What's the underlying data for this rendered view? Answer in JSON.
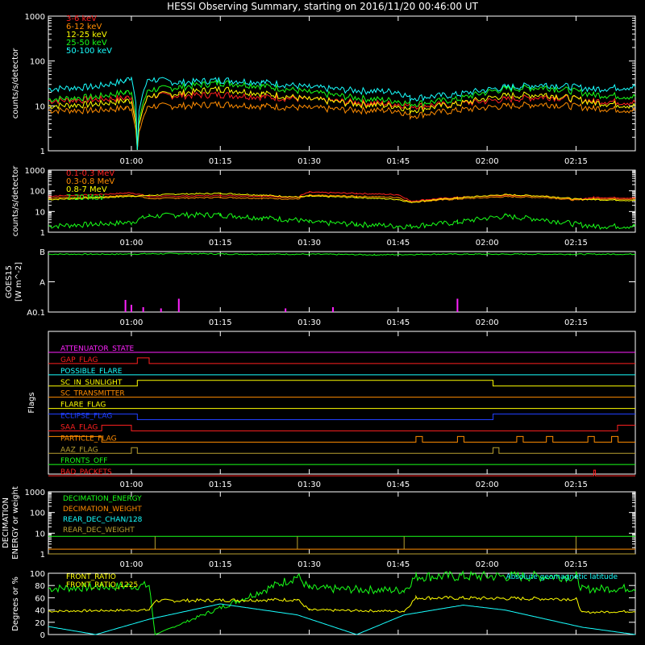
{
  "title": "HESSI Observing Summary, starting on 2016/11/20 00:46:00 UT",
  "time_ticks": [
    "01:00",
    "01:15",
    "01:30",
    "01:45",
    "02:00",
    "02:15"
  ],
  "colors": {
    "axis": "#ffffff",
    "red": "#ff2020",
    "orange": "#ff8c00",
    "yellow": "#ffff00",
    "green": "#18ff18",
    "cyan": "#18ffff",
    "magenta": "#ff22ff",
    "blue": "#2040ff",
    "olive": "#b8a030"
  },
  "chart_data": [
    {
      "id": "panel1",
      "type": "line",
      "ylabel": "counts/s/detector",
      "ylog": true,
      "ylim": [
        1,
        1000
      ],
      "yticks": [
        "1",
        "10",
        "100",
        "1000"
      ],
      "legend_position": "top-left",
      "x": [
        "00:46",
        "00:54",
        "00:59",
        "01:00",
        "01:01",
        "01:03",
        "01:08",
        "01:15",
        "01:22",
        "01:30",
        "01:38",
        "01:45",
        "01:47",
        "01:55",
        "02:03",
        "02:10",
        "02:18",
        "02:25"
      ],
      "series": [
        {
          "name": "3-6 keV",
          "color": "red",
          "values": [
            13,
            14,
            15,
            16,
            1,
            17,
            17,
            18,
            16,
            14,
            12,
            11,
            10,
            11,
            14,
            16,
            13,
            12
          ]
        },
        {
          "name": "6-12 keV",
          "color": "orange",
          "values": [
            8,
            8,
            9,
            9,
            1,
            10,
            10,
            11,
            10,
            9,
            8,
            8,
            6,
            8,
            10,
            11,
            9,
            8
          ]
        },
        {
          "name": "12-25 keV",
          "color": "yellow",
          "values": [
            10,
            11,
            13,
            13,
            1,
            17,
            19,
            24,
            19,
            14,
            11,
            10,
            8,
            11,
            17,
            18,
            12,
            10
          ]
        },
        {
          "name": "25-50 keV",
          "color": "green",
          "values": [
            14,
            16,
            20,
            21,
            1,
            23,
            26,
            33,
            28,
            20,
            15,
            13,
            11,
            14,
            24,
            26,
            18,
            16
          ]
        },
        {
          "name": "50-100 keV",
          "color": "cyan",
          "values": [
            24,
            27,
            36,
            45,
            1,
            40,
            33,
            38,
            34,
            26,
            22,
            21,
            15,
            18,
            26,
            30,
            24,
            27
          ]
        }
      ]
    },
    {
      "id": "panel2",
      "type": "line",
      "ylabel": "counts/s/detector",
      "ylog": true,
      "ylim": [
        1,
        1000
      ],
      "yticks": [
        "1",
        "10",
        "100",
        "1000"
      ],
      "legend_position": "top-left",
      "x": [
        "00:46",
        "00:54",
        "01:00",
        "01:03",
        "01:08",
        "01:15",
        "01:22",
        "01:28",
        "01:30",
        "01:38",
        "01:45",
        "01:47",
        "01:55",
        "02:03",
        "02:10",
        "02:15",
        "02:18",
        "02:25"
      ],
      "series": [
        {
          "name": "0.1-0.3 MeV",
          "color": "red",
          "values": [
            55,
            65,
            80,
            52,
            55,
            60,
            55,
            48,
            85,
            75,
            65,
            32,
            48,
            60,
            56,
            38,
            48,
            45
          ]
        },
        {
          "name": "0.3-0.8 MeV",
          "color": "orange",
          "values": [
            45,
            50,
            62,
            42,
            45,
            48,
            44,
            40,
            60,
            55,
            48,
            28,
            40,
            52,
            48,
            35,
            42,
            40
          ]
        },
        {
          "name": "0.8-7 MeV",
          "color": "yellow",
          "values": [
            38,
            45,
            55,
            60,
            70,
            75,
            62,
            50,
            55,
            48,
            38,
            28,
            45,
            65,
            55,
            40,
            38,
            34
          ]
        },
        {
          "name": "7-20 MeV",
          "color": "green",
          "values": [
            2,
            2.5,
            3,
            6,
            7,
            7,
            5,
            4,
            3,
            2.5,
            2,
            2,
            3,
            6,
            4,
            2.5,
            2,
            2
          ]
        }
      ]
    },
    {
      "id": "panel3",
      "type": "line",
      "ylabel": "GOES15",
      "ylabel2": "[W m^-2]",
      "yticks": [
        "A0.1",
        "A",
        "B"
      ],
      "series": [
        {
          "name": "GOES flux",
          "color": "green",
          "level": "B",
          "values": [
            0.92,
            0.92,
            0.93,
            0.92,
            0.92,
            0.91,
            0.92,
            0.92,
            0.92,
            0.92
          ]
        },
        {
          "name": "GOES spikes",
          "color": "magenta",
          "spikes": [
            [
              "00:59",
              0.2
            ],
            [
              "01:00",
              0.12
            ],
            [
              "01:02",
              0.08
            ],
            [
              "01:05",
              0.06
            ],
            [
              "01:08",
              0.22
            ],
            [
              "01:26",
              0.06
            ],
            [
              "01:34",
              0.08
            ],
            [
              "01:55",
              0.22
            ]
          ]
        }
      ]
    },
    {
      "id": "panel4",
      "type": "line",
      "ylabel": "Flags",
      "flags": [
        {
          "name": "ATTENUATOR_STATE",
          "color": "magenta"
        },
        {
          "name": "GAP_FLAG",
          "color": "red"
        },
        {
          "name": "POSSIBLE_FLARE",
          "color": "cyan"
        },
        {
          "name": "SC_IN_SUNLIGHT",
          "color": "yellow"
        },
        {
          "name": "SC_TRANSMITTER",
          "color": "orange"
        },
        {
          "name": "FLARE_FLAG",
          "color": "yellow"
        },
        {
          "name": "ECLIPSE_FLAG",
          "color": "blue"
        },
        {
          "name": "SAA_FLAG",
          "color": "red"
        },
        {
          "name": "PARTICLE_FLAG",
          "color": "orange"
        },
        {
          "name": "AAZ_FLAG",
          "color": "olive"
        },
        {
          "name": "FRONTS_OFF",
          "color": "green"
        },
        {
          "name": "BAD_PACKETS",
          "color": "red"
        }
      ]
    },
    {
      "id": "panel5",
      "type": "line",
      "ylabel": "DECIMATION",
      "ylabel2": "ENERGY or weight",
      "ylog": true,
      "ylim": [
        1,
        1000
      ],
      "yticks": [
        "1",
        "10",
        "100",
        "1000"
      ],
      "series": [
        {
          "name": "DECIMATION_ENERGY",
          "color": "green",
          "values": [
            7,
            7
          ]
        },
        {
          "name": "DECIMATION_WEIGHT",
          "color": "orange",
          "values": [
            1.7,
            1.7
          ]
        },
        {
          "name": "REAR_DEC_CHAN/128",
          "color": "cyan",
          "values": [
            1,
            1
          ]
        },
        {
          "name": "REAR_DEC_WEIGHT",
          "color": "olive",
          "values": [
            1,
            1
          ]
        }
      ]
    },
    {
      "id": "panel6",
      "type": "line",
      "ylabel": "Degrees or %",
      "ylim": [
        0,
        100
      ],
      "yticks": [
        "0",
        "20",
        "40",
        "60",
        "80",
        "100"
      ],
      "series": [
        {
          "name": "FRONT_RATIO",
          "color": "green",
          "x": [
            "00:46",
            "01:03",
            "01:04",
            "01:28",
            "01:30",
            "01:46",
            "01:48",
            "02:15",
            "02:16",
            "02:25"
          ],
          "values": [
            75,
            80,
            0,
            95,
            75,
            72,
            95,
            95,
            74,
            76
          ]
        },
        {
          "name": "FRONT_RATIO_1225",
          "color": "yellow",
          "x": [
            "00:46",
            "01:03",
            "01:04",
            "01:28",
            "01:30",
            "01:46",
            "01:48",
            "02:15",
            "02:16",
            "02:25"
          ],
          "values": [
            38,
            40,
            55,
            57,
            40,
            38,
            60,
            58,
            36,
            38
          ]
        },
        {
          "name": "Absolute geomagnetic latitude",
          "color": "cyan",
          "x": [
            "00:46",
            "00:54",
            "01:03",
            "01:15",
            "01:28",
            "01:38",
            "01:46",
            "01:56",
            "02:03",
            "02:16",
            "02:25"
          ],
          "values": [
            13,
            0,
            25,
            50,
            32,
            0,
            32,
            48,
            40,
            12,
            0
          ]
        }
      ]
    }
  ]
}
